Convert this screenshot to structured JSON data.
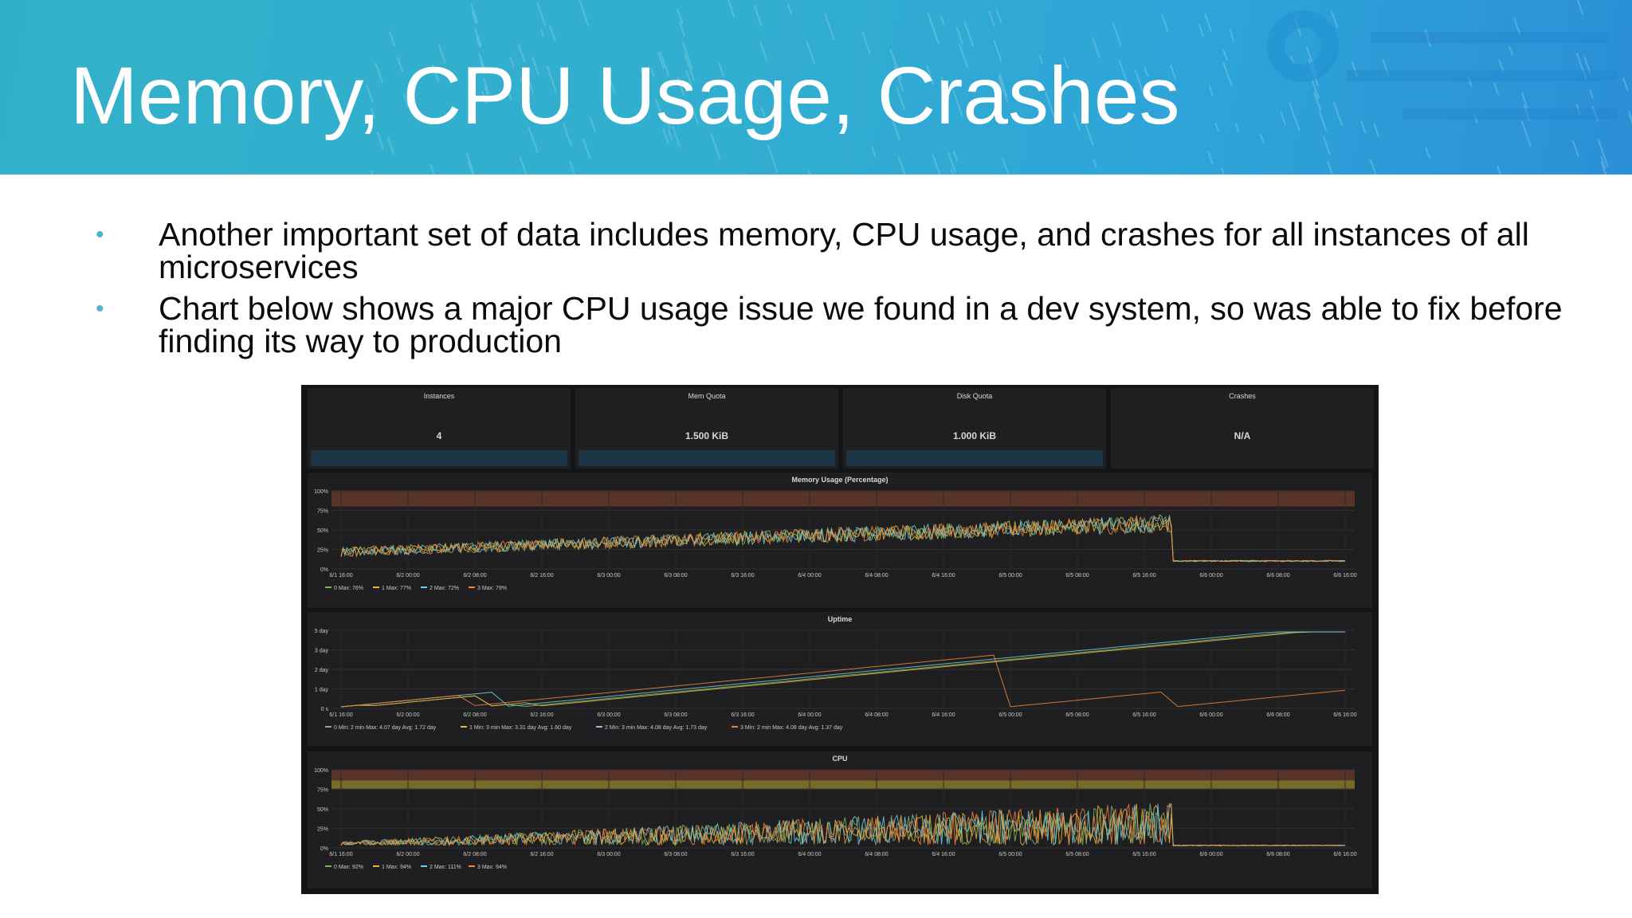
{
  "slide": {
    "title": "Memory, CPU Usage, Crashes",
    "bullets": [
      "Another important set of data includes memory, CPU usage, and crashes for all instances of all microservices",
      "Chart below shows a major CPU usage issue we found in a dev system, so was able to fix before finding its way to production"
    ]
  },
  "dashboard": {
    "stats": [
      {
        "title": "Instances",
        "value": "4"
      },
      {
        "title": "Mem Quota",
        "value": "1.500 KiB"
      },
      {
        "title": "Disk Quota",
        "value": "1.000 KiB"
      },
      {
        "title": "Crashes",
        "value": "N/A"
      }
    ],
    "x_ticks": [
      "6/1 16:00",
      "6/2 00:00",
      "6/2 08:00",
      "6/2 16:00",
      "6/3 00:00",
      "6/3 08:00",
      "6/3 16:00",
      "6/4 00:00",
      "6/4 08:00",
      "6/4 16:00",
      "6/5 00:00",
      "6/5 08:00",
      "6/5 16:00",
      "6/6 00:00",
      "6/6 08:00",
      "6/6 16:00"
    ]
  },
  "colors": {
    "series": [
      "#7eb26d",
      "#eab839",
      "#6ed0e0",
      "#ef843c"
    ],
    "banner": "#33b0c9",
    "bullet": "#4fb3cf",
    "panel": "#1f1f21"
  },
  "chart_data": [
    {
      "type": "line",
      "title": "Memory Usage (Percentage)",
      "y_ticks": [
        "100%",
        "75%",
        "50%",
        "25%",
        "0%"
      ],
      "ylim": [
        0,
        100
      ],
      "threshold_band": [
        80,
        100
      ],
      "series": [
        {
          "name": "0",
          "stat": "Max: 76%"
        },
        {
          "name": "1",
          "stat": "Max: 77%"
        },
        {
          "name": "2",
          "stat": "Max: 72%"
        },
        {
          "name": "3",
          "stat": "Max: 79%"
        }
      ]
    },
    {
      "type": "line",
      "title": "Uptime",
      "y_ticks": [
        "5 day",
        "3 day",
        "2 day",
        "1 day",
        "0 s"
      ],
      "series": [
        {
          "name": "0",
          "stat": "Min: 2 min  Max: 4.07 day  Avg: 1.72 day"
        },
        {
          "name": "1",
          "stat": "Min: 3 min  Max: 3.31 day  Avg: 1.60 day"
        },
        {
          "name": "2",
          "stat": "Min: 3 min  Max: 4.08 day  Avg: 1.73 day"
        },
        {
          "name": "3",
          "stat": "Min: 2 min  Max: 4.08 day  Avg: 1.37 day"
        }
      ]
    },
    {
      "type": "line",
      "title": "CPU",
      "y_ticks": [
        "100%",
        "75%",
        "50%",
        "25%",
        "0%"
      ],
      "ylim": [
        0,
        100
      ],
      "threshold_band": [
        75,
        100
      ],
      "series": [
        {
          "name": "0",
          "stat": "Max: 92%"
        },
        {
          "name": "1",
          "stat": "Max: 94%"
        },
        {
          "name": "2",
          "stat": "Max: 111%"
        },
        {
          "name": "3",
          "stat": "Max: 94%"
        }
      ]
    }
  ]
}
